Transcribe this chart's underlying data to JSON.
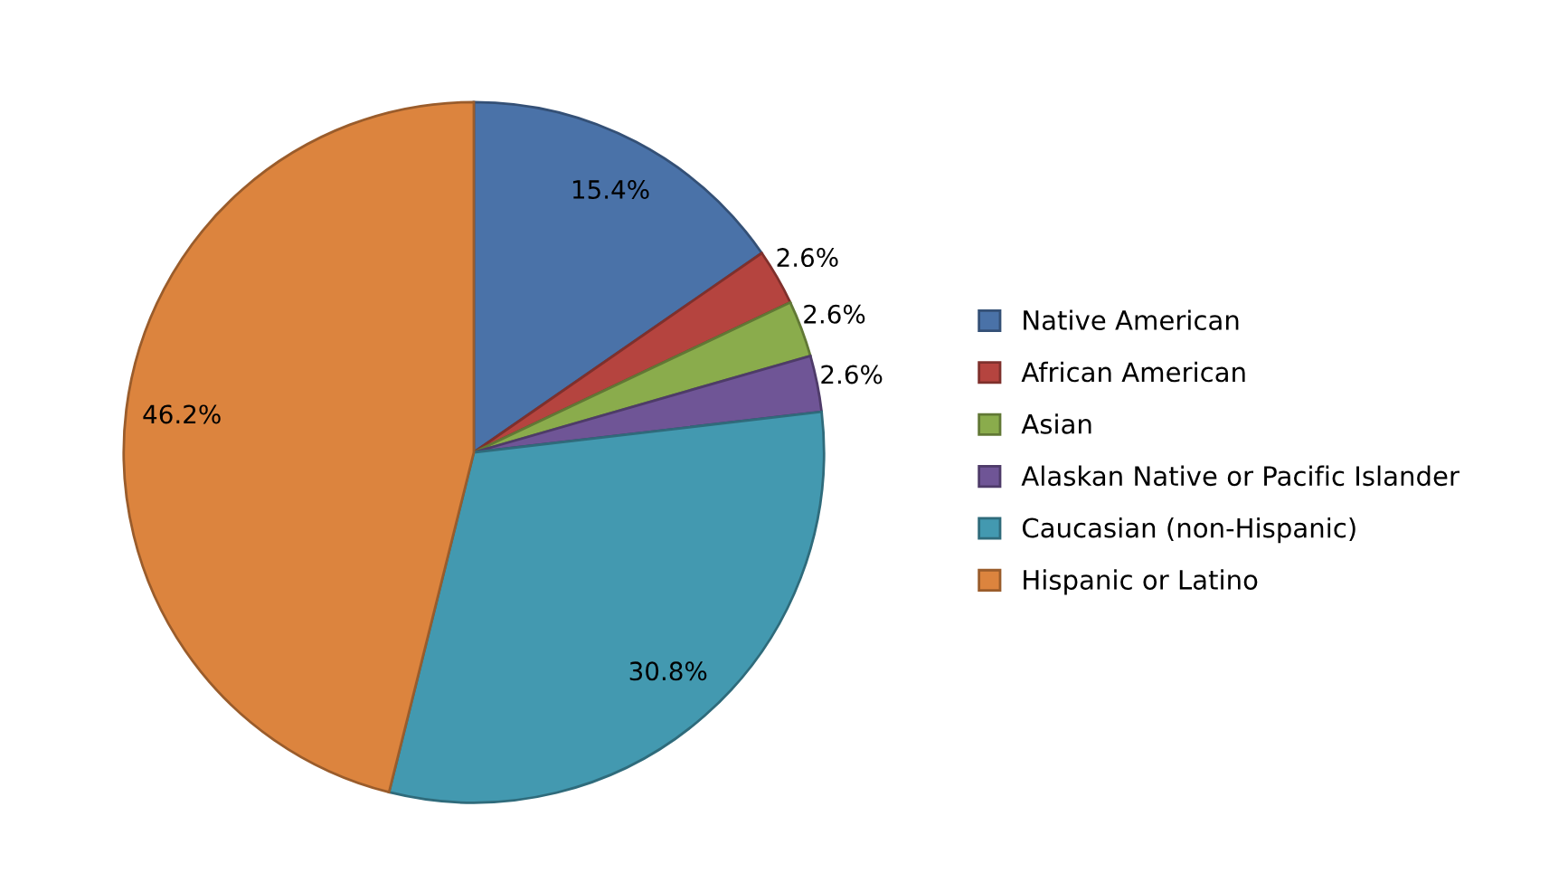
{
  "chart_data": {
    "type": "pie",
    "categories": [
      "Native American",
      "African American",
      "Asian",
      "Alaskan Native or Pacific Islander",
      "Caucasian (non-Hispanic)",
      "Hispanic or Latino"
    ],
    "values": [
      15.4,
      2.6,
      2.6,
      2.6,
      30.8,
      46.2
    ],
    "value_labels": [
      "15.4%",
      "2.6%",
      "2.6%",
      "2.6%",
      "30.8%",
      "46.2%"
    ],
    "colors": [
      "#4a72a8",
      "#b5443f",
      "#8aac4c",
      "#6f5596",
      "#4399b0",
      "#dc843e"
    ],
    "legend": "right"
  }
}
